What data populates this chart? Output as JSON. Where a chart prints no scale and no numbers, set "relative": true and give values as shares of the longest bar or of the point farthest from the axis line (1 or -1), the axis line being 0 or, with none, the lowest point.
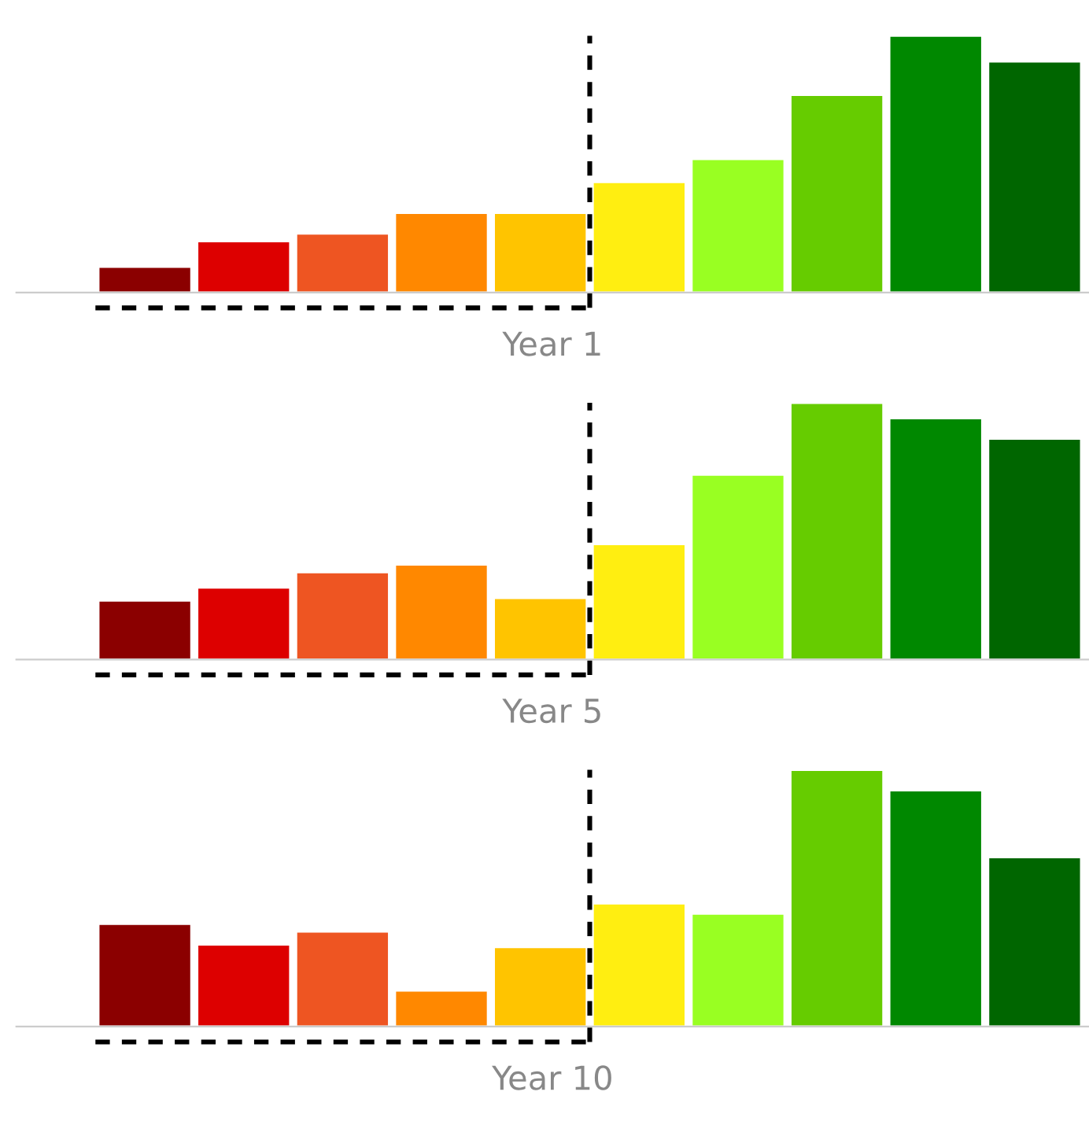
{
  "chart_data": [
    {
      "type": "bar",
      "relative": true,
      "xlabel": "Year 1",
      "categories": [
        null,
        null,
        null,
        null,
        null,
        null,
        null,
        null,
        null,
        null
      ],
      "values": [
        0.1,
        0.2,
        0.23,
        0.31,
        0.31,
        0.43,
        0.52,
        0.77,
        1,
        0.9
      ],
      "colors": [
        "#8b0000",
        "#dd0000",
        "#ee5522",
        "#ff8800",
        "#ffc400",
        "#ffee11",
        "#99ff22",
        "#66cc00",
        "#008800",
        "#006600"
      ]
    },
    {
      "type": "bar",
      "relative": true,
      "xlabel": "Year 5",
      "categories": [
        null,
        null,
        null,
        null,
        null,
        null,
        null,
        null,
        null,
        null
      ],
      "values": [
        0.23,
        0.28,
        0.34,
        0.37,
        0.24,
        0.45,
        0.72,
        1,
        0.94,
        0.86
      ],
      "colors": [
        "#8b0000",
        "#dd0000",
        "#ee5522",
        "#ff8800",
        "#ffc400",
        "#ffee11",
        "#99ff22",
        "#66cc00",
        "#008800",
        "#006600"
      ]
    },
    {
      "type": "bar",
      "relative": true,
      "xlabel": "Year 10",
      "categories": [
        null,
        null,
        null,
        null,
        null,
        null,
        null,
        null,
        null,
        null
      ],
      "values": [
        0.4,
        0.32,
        0.37,
        0.14,
        0.31,
        0.48,
        0.44,
        1,
        0.92,
        0.66
      ],
      "colors": [
        "#8b0000",
        "#dd0000",
        "#ee5522",
        "#ff8800",
        "#ffc400",
        "#ffee11",
        "#99ff22",
        "#66cc00",
        "#008800",
        "#006600"
      ]
    }
  ]
}
